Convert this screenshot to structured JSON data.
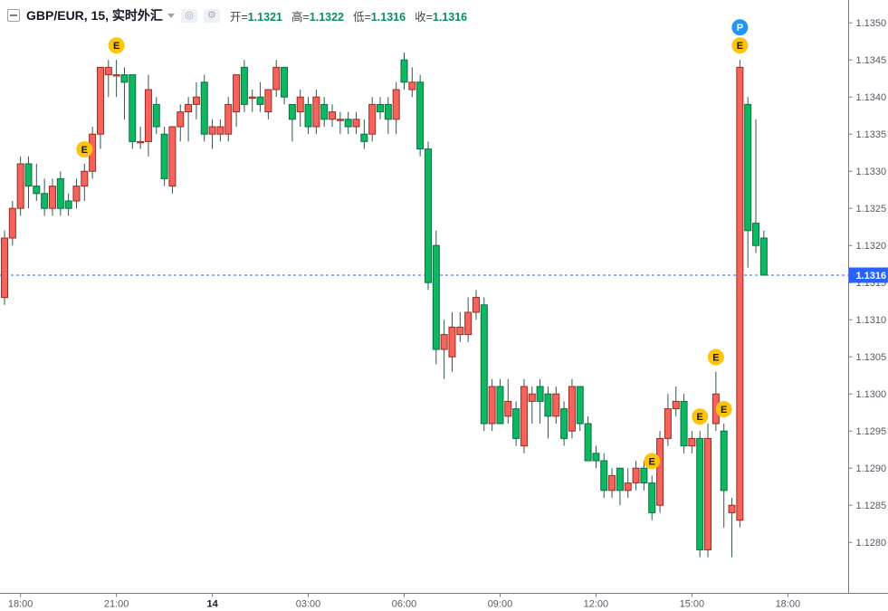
{
  "header": {
    "title": "GBP/EUR, 15, 实时外汇",
    "icons": {
      "circle": "◎",
      "gear": "⚙"
    },
    "ohlc": {
      "open": {
        "label": "开=",
        "value": "1.1321"
      },
      "high": {
        "label": "高=",
        "value": "1.1322"
      },
      "low": {
        "label": "低=",
        "value": "1.1316"
      },
      "close": {
        "label": "收=",
        "value": "1.1316"
      }
    },
    "value_color": "#0b8d62"
  },
  "price_scale": {
    "labels": [
      "1.1350",
      "1.1345",
      "1.1340",
      "1.1335",
      "1.1330",
      "1.1325",
      "1.1320",
      "1.1315",
      "1.1310",
      "1.1305",
      "1.1300",
      "1.1295",
      "1.1290",
      "1.1285",
      "1.1280"
    ],
    "last_price_label": "1.1316",
    "last_price_color": "#2962ff"
  },
  "time_axis": {
    "ticks": [
      {
        "label": "18:00",
        "index": 2,
        "date": false
      },
      {
        "label": "21:00",
        "index": 14,
        "date": false
      },
      {
        "label": "14",
        "index": 26,
        "date": true
      },
      {
        "label": "03:00",
        "index": 38,
        "date": false
      },
      {
        "label": "06:00",
        "index": 50,
        "date": false
      },
      {
        "label": "09:00",
        "index": 62,
        "date": false
      },
      {
        "label": "12:00",
        "index": 74,
        "date": false
      },
      {
        "label": "15:00",
        "index": 86,
        "date": false
      },
      {
        "label": "18:00",
        "index": 98,
        "date": false
      }
    ]
  },
  "chart_data": {
    "type": "candlestick",
    "symbol": "GBP/EUR",
    "interval": "15",
    "market": "实时外汇",
    "ylim": [
      1.1276,
      1.1352
    ],
    "grid": false,
    "price_line": 1.1316,
    "colors": {
      "up_fill": "#f4645d",
      "up_border": "#9c2b21",
      "down_fill": "#0db861",
      "down_border": "#0a6f45",
      "wick": "#33584b",
      "price_line": "#2962ff",
      "marker_e_bg": "#fcc40d",
      "marker_e_text": "#1a1a1a",
      "marker_p_bg": "#2196f3",
      "marker_p_text": "#ffffff",
      "axis_text": "#555a64",
      "axis_line": "#787b86",
      "date_text": "#131722"
    },
    "markers": [
      {
        "label": "E",
        "index": 10
      },
      {
        "label": "E",
        "index": 14
      },
      {
        "label": "E",
        "index": 81
      },
      {
        "label": "E",
        "index": 87
      },
      {
        "label": "E",
        "index": 89
      },
      {
        "label": "E",
        "index": 90
      },
      {
        "label": "E",
        "index": 92
      },
      {
        "label": "P",
        "index": 92,
        "stack": 1
      }
    ],
    "candles": [
      {
        "t": "17:30",
        "o": 1.1313,
        "h": 1.1322,
        "l": 1.1312,
        "c": 1.1321
      },
      {
        "t": "17:45",
        "o": 1.1321,
        "h": 1.1326,
        "l": 1.132,
        "c": 1.1325
      },
      {
        "t": "18:00",
        "o": 1.1325,
        "h": 1.1332,
        "l": 1.1324,
        "c": 1.1331
      },
      {
        "t": "18:15",
        "o": 1.1331,
        "h": 1.1332,
        "l": 1.1325,
        "c": 1.1328
      },
      {
        "t": "18:30",
        "o": 1.1328,
        "h": 1.1331,
        "l": 1.1326,
        "c": 1.1327
      },
      {
        "t": "18:45",
        "o": 1.1327,
        "h": 1.1329,
        "l": 1.1324,
        "c": 1.1325
      },
      {
        "t": "19:00",
        "o": 1.1325,
        "h": 1.1329,
        "l": 1.1324,
        "c": 1.1328
      },
      {
        "t": "19:15",
        "o": 1.1329,
        "h": 1.133,
        "l": 1.1324,
        "c": 1.1325
      },
      {
        "t": "19:30",
        "o": 1.1326,
        "h": 1.1327,
        "l": 1.1324,
        "c": 1.1325
      },
      {
        "t": "19:45",
        "o": 1.1326,
        "h": 1.1329,
        "l": 1.1325,
        "c": 1.1328
      },
      {
        "t": "20:00",
        "o": 1.1328,
        "h": 1.1331,
        "l": 1.1326,
        "c": 1.133
      },
      {
        "t": "20:15",
        "o": 1.133,
        "h": 1.1336,
        "l": 1.1329,
        "c": 1.1335
      },
      {
        "t": "20:30",
        "o": 1.1335,
        "h": 1.1344,
        "l": 1.1333,
        "c": 1.1344
      },
      {
        "t": "20:45",
        "o": 1.1343,
        "h": 1.1345,
        "l": 1.134,
        "c": 1.1344
      },
      {
        "t": "21:00",
        "o": 1.1343,
        "h": 1.1345,
        "l": 1.134,
        "c": 1.1343
      },
      {
        "t": "21:15",
        "o": 1.1343,
        "h": 1.1344,
        "l": 1.1337,
        "c": 1.1342
      },
      {
        "t": "21:30",
        "o": 1.1343,
        "h": 1.1343,
        "l": 1.1333,
        "c": 1.1334
      },
      {
        "t": "21:45",
        "o": 1.1334,
        "h": 1.1336,
        "l": 1.1333,
        "c": 1.1334
      },
      {
        "t": "22:00",
        "o": 1.1334,
        "h": 1.1343,
        "l": 1.1332,
        "c": 1.1341
      },
      {
        "t": "22:15",
        "o": 1.1339,
        "h": 1.134,
        "l": 1.1335,
        "c": 1.1336
      },
      {
        "t": "22:30",
        "o": 1.1335,
        "h": 1.1336,
        "l": 1.1328,
        "c": 1.1329
      },
      {
        "t": "22:45",
        "o": 1.1328,
        "h": 1.1336,
        "l": 1.1327,
        "c": 1.1336
      },
      {
        "t": "23:00",
        "o": 1.1336,
        "h": 1.1339,
        "l": 1.1334,
        "c": 1.1338
      },
      {
        "t": "23:15",
        "o": 1.1338,
        "h": 1.134,
        "l": 1.1334,
        "c": 1.1339
      },
      {
        "t": "23:30",
        "o": 1.1339,
        "h": 1.1342,
        "l": 1.1337,
        "c": 1.134
      },
      {
        "t": "23:45",
        "o": 1.1342,
        "h": 1.1343,
        "l": 1.1334,
        "c": 1.1335
      },
      {
        "t": "00:00",
        "o": 1.1335,
        "h": 1.1337,
        "l": 1.1333,
        "c": 1.1336
      },
      {
        "t": "00:15",
        "o": 1.1335,
        "h": 1.1337,
        "l": 1.1334,
        "c": 1.1336
      },
      {
        "t": "00:30",
        "o": 1.1335,
        "h": 1.134,
        "l": 1.1334,
        "c": 1.1339
      },
      {
        "t": "00:45",
        "o": 1.1338,
        "h": 1.1343,
        "l": 1.1336,
        "c": 1.1343
      },
      {
        "t": "01:00",
        "o": 1.1344,
        "h": 1.1345,
        "l": 1.1338,
        "c": 1.1339
      },
      {
        "t": "01:15",
        "o": 1.134,
        "h": 1.1341,
        "l": 1.1338,
        "c": 1.134
      },
      {
        "t": "01:30",
        "o": 1.134,
        "h": 1.1342,
        "l": 1.1338,
        "c": 1.1339
      },
      {
        "t": "01:45",
        "o": 1.1338,
        "h": 1.1341,
        "l": 1.1337,
        "c": 1.1341
      },
      {
        "t": "02:00",
        "o": 1.1341,
        "h": 1.1345,
        "l": 1.134,
        "c": 1.1344
      },
      {
        "t": "02:15",
        "o": 1.1344,
        "h": 1.1344,
        "l": 1.1339,
        "c": 1.134
      },
      {
        "t": "02:30",
        "o": 1.1339,
        "h": 1.1339,
        "l": 1.1334,
        "c": 1.1337
      },
      {
        "t": "02:45",
        "o": 1.1338,
        "h": 1.1341,
        "l": 1.1336,
        "c": 1.134
      },
      {
        "t": "03:00",
        "o": 1.1339,
        "h": 1.134,
        "l": 1.1335,
        "c": 1.1336
      },
      {
        "t": "03:15",
        "o": 1.1336,
        "h": 1.1341,
        "l": 1.1335,
        "c": 1.134
      },
      {
        "t": "03:30",
        "o": 1.1339,
        "h": 1.134,
        "l": 1.1336,
        "c": 1.1337
      },
      {
        "t": "03:45",
        "o": 1.1337,
        "h": 1.1339,
        "l": 1.1336,
        "c": 1.1338
      },
      {
        "t": "04:00",
        "o": 1.1337,
        "h": 1.1338,
        "l": 1.1335,
        "c": 1.1337
      },
      {
        "t": "04:15",
        "o": 1.1337,
        "h": 1.1338,
        "l": 1.1335,
        "c": 1.1336
      },
      {
        "t": "04:30",
        "o": 1.1336,
        "h": 1.1338,
        "l": 1.1335,
        "c": 1.1337
      },
      {
        "t": "04:45",
        "o": 1.1335,
        "h": 1.1337,
        "l": 1.1333,
        "c": 1.1334
      },
      {
        "t": "05:00",
        "o": 1.1335,
        "h": 1.134,
        "l": 1.1334,
        "c": 1.1339
      },
      {
        "t": "05:15",
        "o": 1.1339,
        "h": 1.134,
        "l": 1.1337,
        "c": 1.1338
      },
      {
        "t": "05:30",
        "o": 1.1339,
        "h": 1.134,
        "l": 1.1335,
        "c": 1.1337
      },
      {
        "t": "05:45",
        "o": 1.1337,
        "h": 1.1342,
        "l": 1.1335,
        "c": 1.1341
      },
      {
        "t": "06:00",
        "o": 1.1345,
        "h": 1.1346,
        "l": 1.1341,
        "c": 1.1342
      },
      {
        "t": "06:15",
        "o": 1.1341,
        "h": 1.1344,
        "l": 1.134,
        "c": 1.1342
      },
      {
        "t": "06:30",
        "o": 1.1342,
        "h": 1.1343,
        "l": 1.1332,
        "c": 1.1333
      },
      {
        "t": "06:45",
        "o": 1.1333,
        "h": 1.1334,
        "l": 1.1314,
        "c": 1.1315
      },
      {
        "t": "07:00",
        "o": 1.132,
        "h": 1.1322,
        "l": 1.1304,
        "c": 1.1306
      },
      {
        "t": "07:15",
        "o": 1.1306,
        "h": 1.131,
        "l": 1.1302,
        "c": 1.1308
      },
      {
        "t": "07:30",
        "o": 1.1305,
        "h": 1.1311,
        "l": 1.1303,
        "c": 1.1309
      },
      {
        "t": "07:45",
        "o": 1.1308,
        "h": 1.1311,
        "l": 1.1307,
        "c": 1.1309
      },
      {
        "t": "08:00",
        "o": 1.1308,
        "h": 1.1313,
        "l": 1.1307,
        "c": 1.1311
      },
      {
        "t": "08:15",
        "o": 1.1311,
        "h": 1.1314,
        "l": 1.131,
        "c": 1.1313
      },
      {
        "t": "08:30",
        "o": 1.1312,
        "h": 1.1313,
        "l": 1.1295,
        "c": 1.1296
      },
      {
        "t": "08:45",
        "o": 1.1296,
        "h": 1.1302,
        "l": 1.1295,
        "c": 1.1301
      },
      {
        "t": "09:00",
        "o": 1.1301,
        "h": 1.1302,
        "l": 1.1296,
        "c": 1.1296
      },
      {
        "t": "09:15",
        "o": 1.1297,
        "h": 1.1302,
        "l": 1.1296,
        "c": 1.1299
      },
      {
        "t": "09:30",
        "o": 1.1298,
        "h": 1.1299,
        "l": 1.1293,
        "c": 1.1294
      },
      {
        "t": "09:45",
        "o": 1.1293,
        "h": 1.1302,
        "l": 1.1292,
        "c": 1.1301
      },
      {
        "t": "10:00",
        "o": 1.1299,
        "h": 1.1301,
        "l": 1.1296,
        "c": 1.13
      },
      {
        "t": "10:15",
        "o": 1.1301,
        "h": 1.1302,
        "l": 1.1296,
        "c": 1.1299
      },
      {
        "t": "10:30",
        "o": 1.13,
        "h": 1.1301,
        "l": 1.1294,
        "c": 1.1297
      },
      {
        "t": "10:45",
        "o": 1.1297,
        "h": 1.1301,
        "l": 1.1296,
        "c": 1.13
      },
      {
        "t": "11:00",
        "o": 1.1298,
        "h": 1.1299,
        "l": 1.1293,
        "c": 1.1294
      },
      {
        "t": "11:15",
        "o": 1.1295,
        "h": 1.1302,
        "l": 1.1294,
        "c": 1.1301
      },
      {
        "t": "11:30",
        "o": 1.1301,
        "h": 1.1301,
        "l": 1.1295,
        "c": 1.1296
      },
      {
        "t": "11:45",
        "o": 1.1296,
        "h": 1.1297,
        "l": 1.1291,
        "c": 1.1291
      },
      {
        "t": "12:00",
        "o": 1.1292,
        "h": 1.1293,
        "l": 1.129,
        "c": 1.1291
      },
      {
        "t": "12:15",
        "o": 1.1291,
        "h": 1.1292,
        "l": 1.1286,
        "c": 1.1287
      },
      {
        "t": "12:30",
        "o": 1.1287,
        "h": 1.129,
        "l": 1.1286,
        "c": 1.1289
      },
      {
        "t": "12:45",
        "o": 1.129,
        "h": 1.129,
        "l": 1.1285,
        "c": 1.1287
      },
      {
        "t": "13:00",
        "o": 1.1287,
        "h": 1.129,
        "l": 1.1286,
        "c": 1.1288
      },
      {
        "t": "13:15",
        "o": 1.1288,
        "h": 1.1291,
        "l": 1.1287,
        "c": 1.129
      },
      {
        "t": "13:30",
        "o": 1.129,
        "h": 1.1291,
        "l": 1.1287,
        "c": 1.1288
      },
      {
        "t": "13:45",
        "o": 1.1288,
        "h": 1.1289,
        "l": 1.1283,
        "c": 1.1284
      },
      {
        "t": "14:00",
        "o": 1.1285,
        "h": 1.1295,
        "l": 1.1284,
        "c": 1.1294
      },
      {
        "t": "14:15",
        "o": 1.1294,
        "h": 1.13,
        "l": 1.1293,
        "c": 1.1298
      },
      {
        "t": "14:30",
        "o": 1.1298,
        "h": 1.1301,
        "l": 1.1297,
        "c": 1.1299
      },
      {
        "t": "14:45",
        "o": 1.1299,
        "h": 1.13,
        "l": 1.1292,
        "c": 1.1293
      },
      {
        "t": "15:00",
        "o": 1.1293,
        "h": 1.1295,
        "l": 1.1292,
        "c": 1.1294
      },
      {
        "t": "15:15",
        "o": 1.1294,
        "h": 1.1295,
        "l": 1.1278,
        "c": 1.1279
      },
      {
        "t": "15:30",
        "o": 1.1279,
        "h": 1.1296,
        "l": 1.1278,
        "c": 1.1294
      },
      {
        "t": "15:45",
        "o": 1.1296,
        "h": 1.1303,
        "l": 1.1295,
        "c": 1.13
      },
      {
        "t": "16:00",
        "o": 1.1295,
        "h": 1.1296,
        "l": 1.1282,
        "c": 1.1287
      },
      {
        "t": "16:15",
        "o": 1.1284,
        "h": 1.1286,
        "l": 1.1278,
        "c": 1.1285
      },
      {
        "t": "16:30",
        "o": 1.1283,
        "h": 1.1345,
        "l": 1.1282,
        "c": 1.1344
      },
      {
        "t": "16:45",
        "o": 1.1339,
        "h": 1.134,
        "l": 1.1317,
        "c": 1.1322
      },
      {
        "t": "17:00",
        "o": 1.1323,
        "h": 1.1337,
        "l": 1.1319,
        "c": 1.132
      },
      {
        "t": "17:15",
        "o": 1.1321,
        "h": 1.1322,
        "l": 1.1316,
        "c": 1.1316
      }
    ]
  }
}
